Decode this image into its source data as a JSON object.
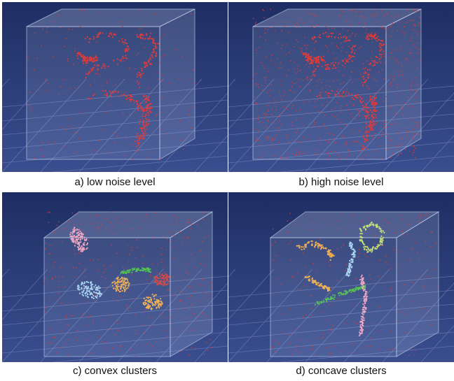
{
  "panels": [
    {
      "id": "a",
      "caption": "a) low noise level"
    },
    {
      "id": "b",
      "caption": "b) high noise level"
    },
    {
      "id": "c",
      "caption": "c) convex clusters"
    },
    {
      "id": "d",
      "caption": "d) concave clusters"
    }
  ],
  "colors": {
    "background_top": "#1e2e63",
    "background_bottom": "#3a4e8f",
    "grid": "#7f90c8",
    "box": "#c7d2ef",
    "noise_point": "#e03a3a",
    "cluster_pink": "#f2a8c4",
    "cluster_lightblue": "#a9d4f2",
    "cluster_orange": "#f0b055",
    "cluster_green": "#55c255",
    "cluster_red": "#d34a4a",
    "cluster_yellowgreen": "#c6e07a"
  }
}
